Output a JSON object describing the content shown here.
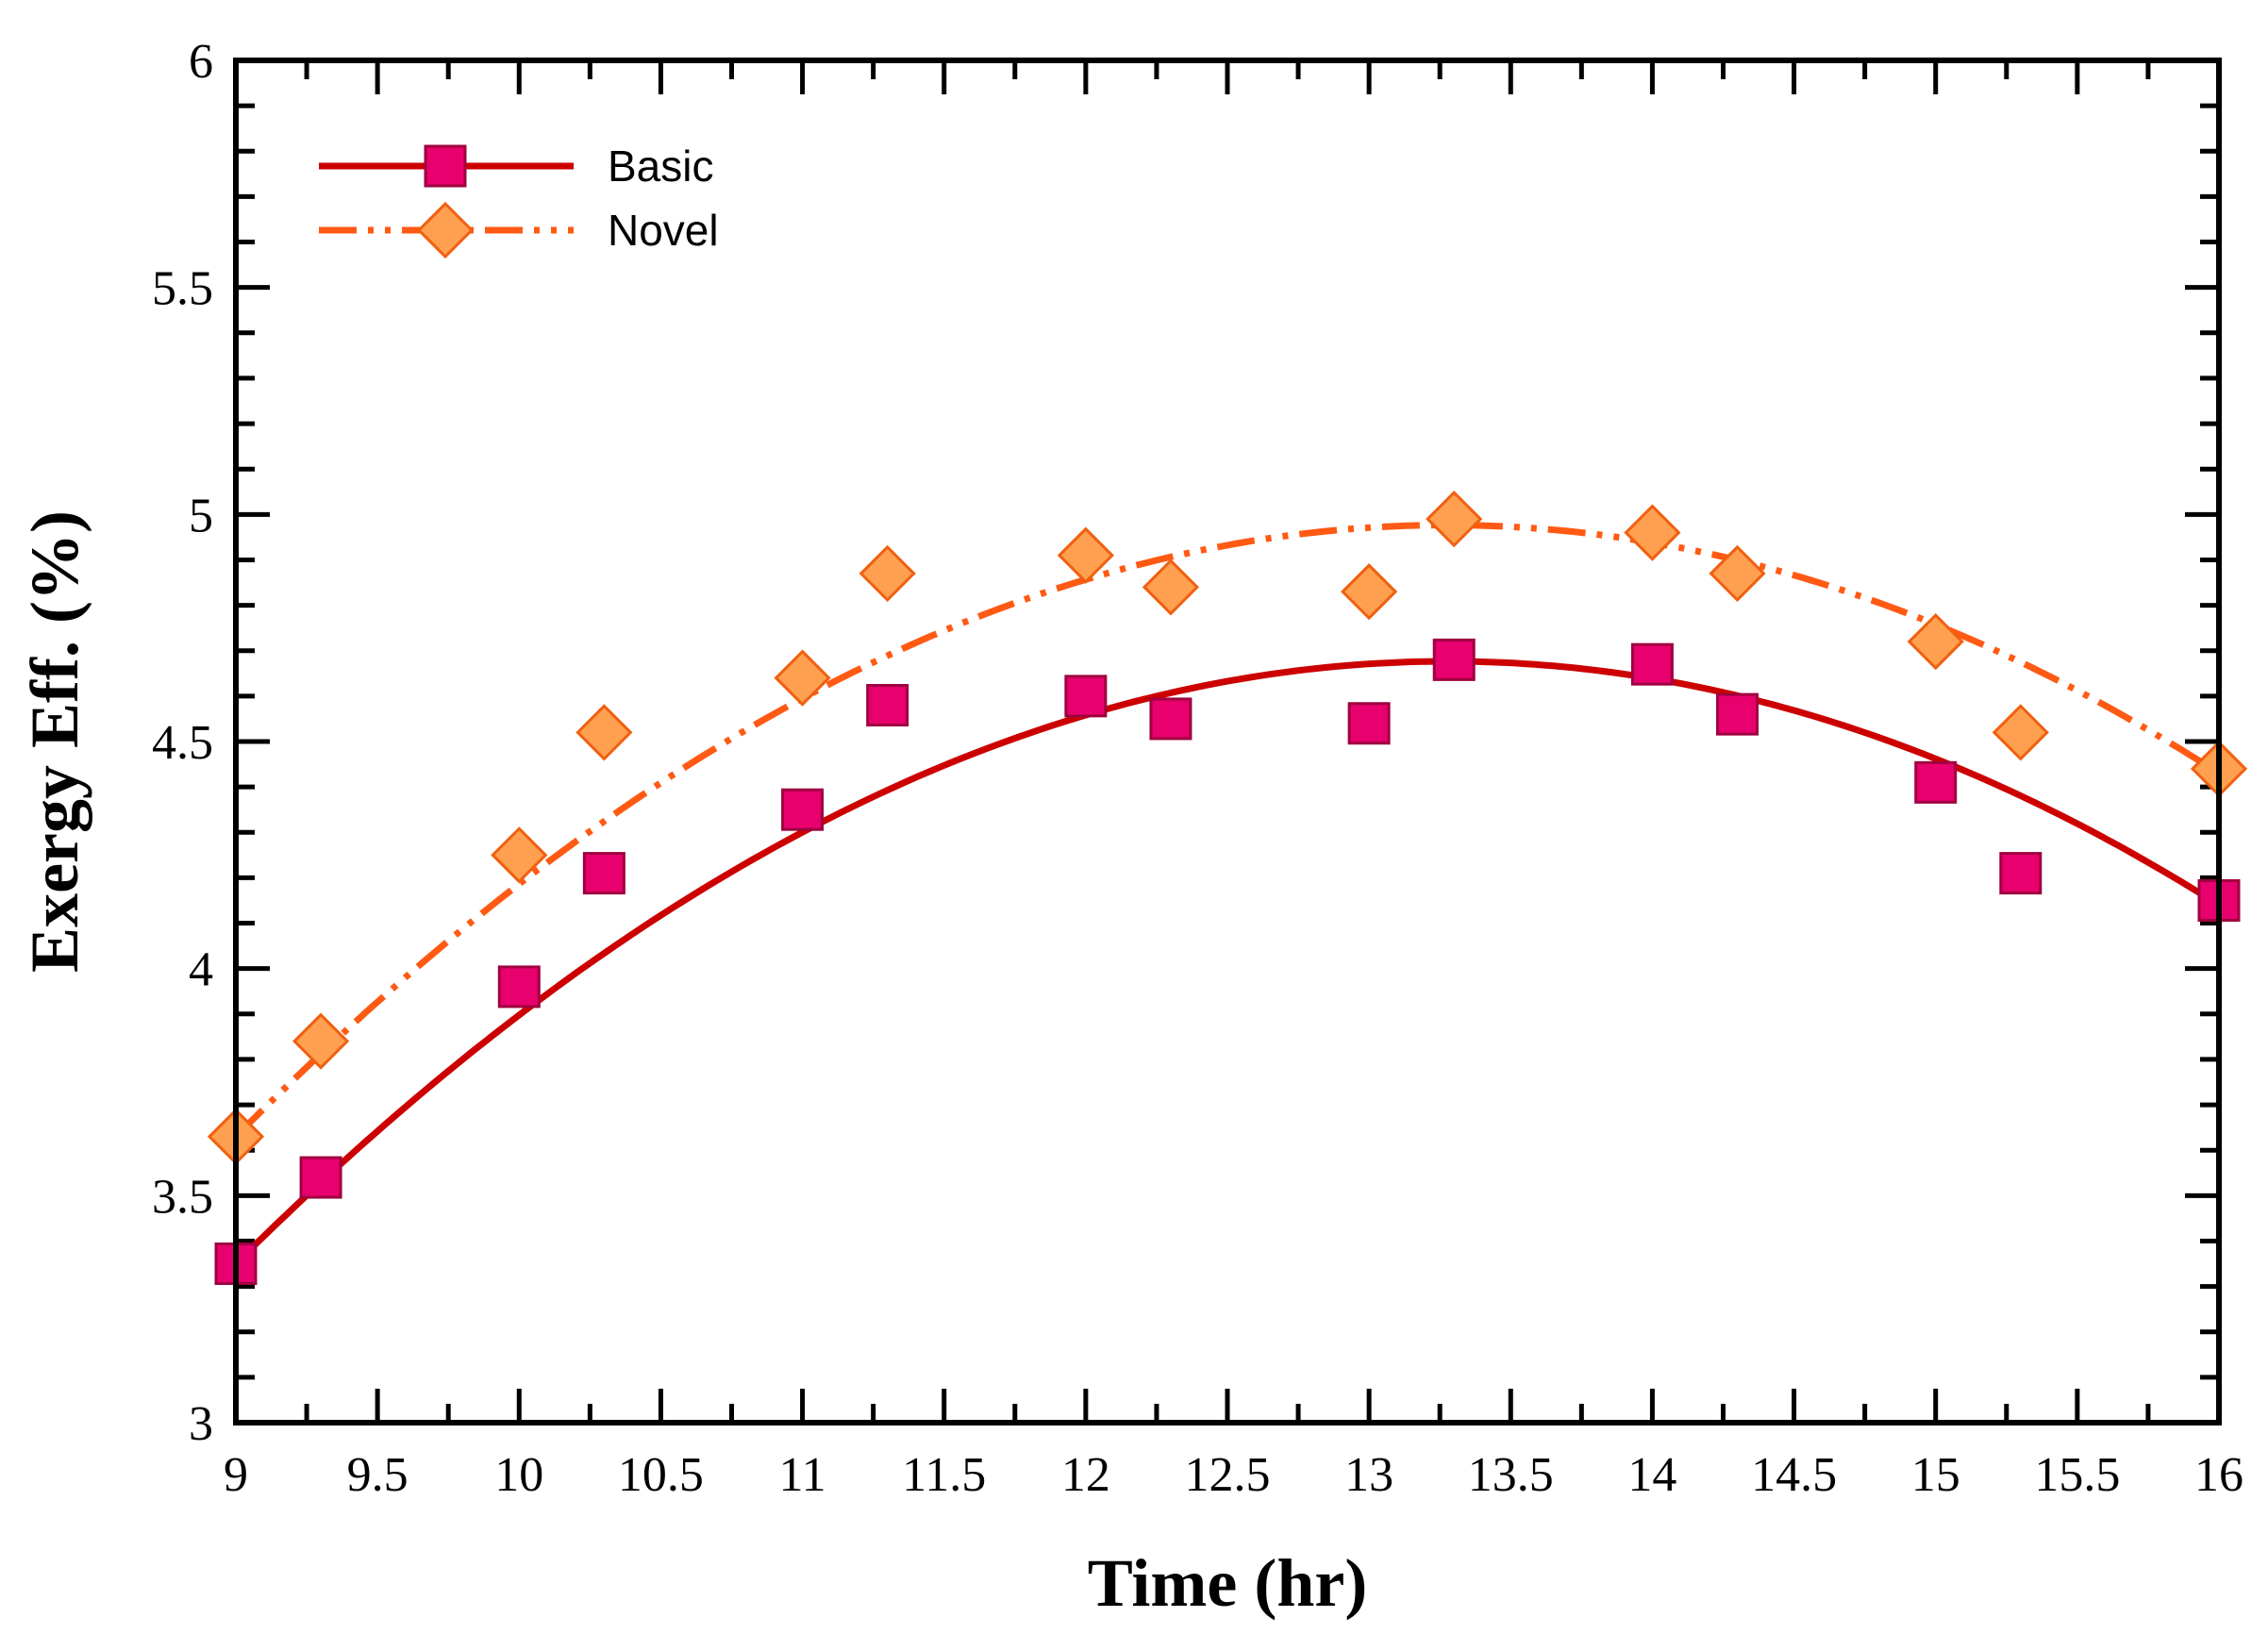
{
  "chart_data": {
    "type": "line",
    "title": "",
    "xlabel": "Time (hr)",
    "ylabel": "Exergy Eff. (%)",
    "xlim": [
      9,
      16
    ],
    "ylim": [
      3,
      6
    ],
    "xticks": [
      9,
      9.5,
      10,
      10.5,
      11,
      11.5,
      12,
      12.5,
      13,
      13.5,
      14,
      14.5,
      15,
      15.5,
      16
    ],
    "xtick_labels": [
      "9",
      "9.5",
      "10",
      "10.5",
      "11",
      "11.5",
      "12",
      "12.5",
      "13",
      "13.5",
      "14",
      "14.5",
      "15",
      "15.5",
      "16"
    ],
    "yticks": [
      3,
      3.5,
      4,
      4.5,
      5,
      5.5,
      6
    ],
    "ytick_labels": [
      "3",
      "3.5",
      "4",
      "4.5",
      "5",
      "5.5",
      "6"
    ],
    "x_minor_step": 0.25,
    "y_minor_step": 0.1,
    "legend_position": "top-left",
    "series": [
      {
        "name": "Basic",
        "marker": "square",
        "line_style": "solid",
        "color": "#cc0000",
        "marker_fill": "#e8006e",
        "marker_edge": "#a00040",
        "x": [
          9,
          9.3,
          10,
          10.3,
          11,
          11.3,
          12,
          12.3,
          13,
          13.3,
          14,
          14.3,
          15,
          15.3,
          16
        ],
        "values": [
          3.35,
          3.54,
          3.96,
          4.21,
          4.35,
          4.58,
          4.6,
          4.55,
          4.54,
          4.68,
          4.67,
          4.56,
          4.41,
          4.21,
          4.15
        ],
        "fit": {
          "type": "poly2",
          "points": [
            [
              9,
              3.35
            ],
            [
              12.8,
              4.66
            ],
            [
              16,
              4.14
            ]
          ]
        }
      },
      {
        "name": "Novel",
        "marker": "diamond",
        "line_style": "dash-dot-dot",
        "color": "#ff5a14",
        "marker_fill": "#ffa050",
        "marker_edge": "#f06010",
        "x": [
          9,
          9.3,
          10,
          10.3,
          11,
          11.3,
          12,
          12.3,
          13,
          13.3,
          14,
          14.3,
          15,
          15.3,
          16
        ],
        "values": [
          3.63,
          3.84,
          4.25,
          4.52,
          4.64,
          4.87,
          4.91,
          4.84,
          4.83,
          4.99,
          4.96,
          4.87,
          4.72,
          4.52,
          4.44
        ],
        "fit": {
          "type": "poly2",
          "points": [
            [
              9,
              3.63
            ],
            [
              12.8,
              4.96
            ],
            [
              16,
              4.43
            ]
          ]
        }
      }
    ]
  }
}
